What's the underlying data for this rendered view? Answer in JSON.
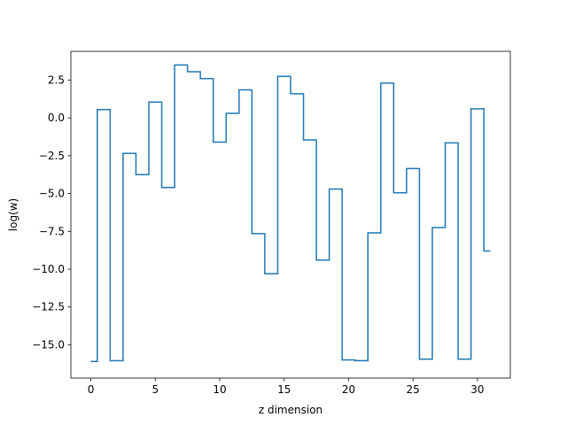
{
  "chart_data": {
    "type": "line",
    "drawstyle": "steps-mid",
    "xlabel": "z dimension",
    "ylabel": "log(w)",
    "xlim": [
      -1.55,
      32.55
    ],
    "ylim": [
      -17.2,
      4.4
    ],
    "xticks": [
      0,
      5,
      10,
      15,
      20,
      25,
      30
    ],
    "xtick_labels": [
      "0",
      "5",
      "10",
      "15",
      "20",
      "25",
      "30"
    ],
    "yticks": [
      2.5,
      0,
      -2.5,
      -5,
      -7.5,
      -10,
      -12.5,
      -15
    ],
    "ytick_labels": [
      "2.5",
      "0.0",
      "−2.5",
      "−5.0",
      "−7.5",
      "−10.0",
      "−12.5",
      "−15.0"
    ],
    "grid": false,
    "legend": false,
    "series": [
      {
        "color": "#1f77b4",
        "x": [
          0,
          1,
          2,
          3,
          4,
          5,
          6,
          7,
          8,
          9,
          10,
          11,
          12,
          13,
          14,
          15,
          16,
          17,
          18,
          19,
          20,
          21,
          22,
          23,
          24,
          25,
          26,
          27,
          28,
          29,
          30,
          31
        ],
        "y": [
          -16.1,
          0.55,
          -16.05,
          -2.35,
          -3.75,
          1.05,
          -4.6,
          3.5,
          3.05,
          2.6,
          -1.6,
          0.3,
          1.85,
          -7.65,
          -10.3,
          2.75,
          1.6,
          -1.45,
          -9.4,
          -4.7,
          -16.0,
          -16.05,
          -7.6,
          2.3,
          -4.95,
          -3.35,
          -15.95,
          -7.25,
          -1.65,
          -15.95,
          0.6,
          -8.8
        ]
      }
    ]
  }
}
